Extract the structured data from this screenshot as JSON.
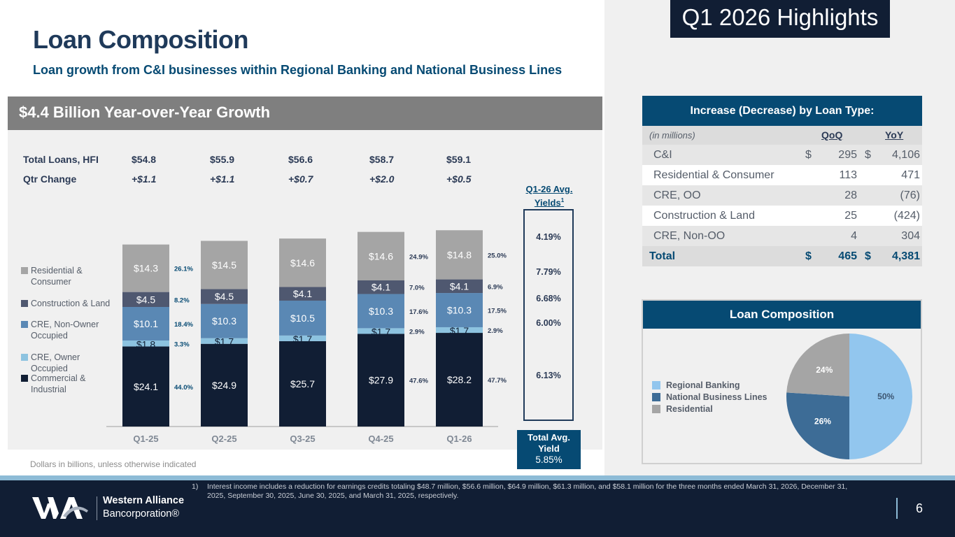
{
  "header": {
    "title": "Loan Composition",
    "subtitle": "Loan growth from C&I businesses within Regional Banking and National Business Lines",
    "highlights_badge": "Q1 2026 Highlights"
  },
  "growth_banner": "$4.4 Billion Year-over-Year Growth",
  "summary": {
    "total_loans_label": "Total Loans, HFI",
    "qtr_change_label": "Qtr Change",
    "total_loans": [
      "$54.8",
      "$55.9",
      "$56.6",
      "$58.7",
      "$59.1"
    ],
    "qtr_change": [
      "+$1.1",
      "+$1.1",
      "+$0.7",
      "+$2.0",
      "+$0.5"
    ]
  },
  "yields": {
    "heading": "Q1-26 Avg. Yields",
    "superscript": "1",
    "values": [
      "4.19%",
      "7.79%",
      "6.68%",
      "6.00%",
      "6.13%"
    ],
    "total_label_1": "Total Avg.",
    "total_label_2": "Yield",
    "total_value": "5.85%"
  },
  "note": "Dollars in billions, unless otherwise indicated",
  "chart_data": [
    {
      "type": "bar",
      "stacked": true,
      "title": "$4.4 Billion Year-over-Year Growth",
      "xlabel": "",
      "ylabel": "Dollars in billions",
      "categories": [
        "Q1-25",
        "Q2-25",
        "Q3-25",
        "Q4-25",
        "Q1-26"
      ],
      "series": [
        {
          "name": "Commercial & Industrial",
          "color": "#111e34",
          "label_color": "#ffffff",
          "values": [
            24.1,
            24.9,
            25.7,
            27.9,
            28.2
          ],
          "labels": [
            "$24.1",
            "$24.9",
            "$25.7",
            "$27.9",
            "$28.2"
          ],
          "pct": [
            "44.0%",
            null,
            null,
            "47.6%",
            "47.7%"
          ]
        },
        {
          "name": "CRE, Owner Occupied",
          "color": "#8dc3e0",
          "label_color": "#111e34",
          "values": [
            1.8,
            1.7,
            1.7,
            1.7,
            1.7
          ],
          "labels": [
            "$1.8",
            "$1.7",
            "$1.7",
            "$1.7",
            "$1.7"
          ],
          "pct": [
            "3.3%",
            null,
            null,
            "2.9%",
            "2.9%"
          ]
        },
        {
          "name": "CRE, Non-Owner Occupied",
          "color": "#5a88b4",
          "label_color": "#ffffff",
          "values": [
            10.1,
            10.3,
            10.5,
            10.3,
            10.3
          ],
          "labels": [
            "$10.1",
            "$10.3",
            "$10.5",
            "$10.3",
            "$10.3"
          ],
          "pct": [
            "18.4%",
            null,
            null,
            "17.6%",
            "17.5%"
          ]
        },
        {
          "name": "Construction & Land",
          "color": "#4f5870",
          "label_color": "#ffffff",
          "values": [
            4.5,
            4.5,
            4.1,
            4.1,
            4.1
          ],
          "labels": [
            "$4.5",
            "$4.5",
            "$4.1",
            "$4.1",
            "$4.1"
          ],
          "pct": [
            "8.2%",
            null,
            null,
            "7.0%",
            "6.9%"
          ]
        },
        {
          "name": "Residential & Consumer",
          "color": "#a5a5a5",
          "label_color": "#ffffff",
          "values": [
            14.3,
            14.5,
            14.6,
            14.6,
            14.8
          ],
          "labels": [
            "$14.3",
            "$14.5",
            "$14.6",
            "$14.6",
            "$14.8"
          ],
          "pct": [
            "26.1%",
            null,
            null,
            "24.9%",
            "25.0%"
          ]
        }
      ],
      "legend": [
        "Residential & Consumer",
        "Construction & Land",
        "CRE, Non-Owner Occupied",
        "CRE, Owner Occupied",
        "Commercial & Industrial"
      ],
      "legend_position": "left",
      "grid": false
    },
    {
      "type": "pie",
      "title": "Loan Composition",
      "labels": [
        "Regional Banking",
        "National Business Lines",
        "Residential"
      ],
      "values": [
        50,
        26,
        24
      ],
      "value_labels": [
        "50%",
        "26%",
        "24%"
      ],
      "colors": [
        "#92c6ee",
        "#3d6c96",
        "#a5a5a5"
      ],
      "label_colors": [
        "#3d5672",
        "#ffffff",
        "#ffffff"
      ],
      "legend_position": "left"
    }
  ],
  "loan_type_table": {
    "heading": "Increase (Decrease) by Loan Type:",
    "units": "(in millions)",
    "col_qoq": "QoQ",
    "col_yoy": "YoY",
    "rows": [
      {
        "label": "C&I",
        "qoq_prefix": "$",
        "qoq": "295",
        "yoy_prefix": "$",
        "yoy": "4,106"
      },
      {
        "label": "Residential & Consumer",
        "qoq_prefix": "",
        "qoq": "113",
        "yoy_prefix": "",
        "yoy": "471"
      },
      {
        "label": "CRE, OO",
        "qoq_prefix": "",
        "qoq": "28",
        "yoy_prefix": "",
        "yoy": "(76)"
      },
      {
        "label": "Construction & Land",
        "qoq_prefix": "",
        "qoq": "25",
        "yoy_prefix": "",
        "yoy": "(424)"
      },
      {
        "label": "CRE, Non-OO",
        "qoq_prefix": "",
        "qoq": "4",
        "yoy_prefix": "",
        "yoy": "304"
      }
    ],
    "total": {
      "label": "Total",
      "qoq_prefix": "$",
      "qoq": "465",
      "yoy_prefix": "$",
      "yoy": "4,381"
    }
  },
  "footer": {
    "footnote_num": "1)",
    "footnote": "Interest income includes a reduction for earnings credits totaling $48.7 million, $56.6 million, $64.9 million, $61.3 million, and $58.1 million for the three months ended March 31, 2026, December 31, 2025, September 30, 2025, June 30, 2025, and March 31, 2025, respectively.",
    "company_name": "Western Alliance",
    "company_sub": "Bancorporation®",
    "page_number": "6"
  }
}
